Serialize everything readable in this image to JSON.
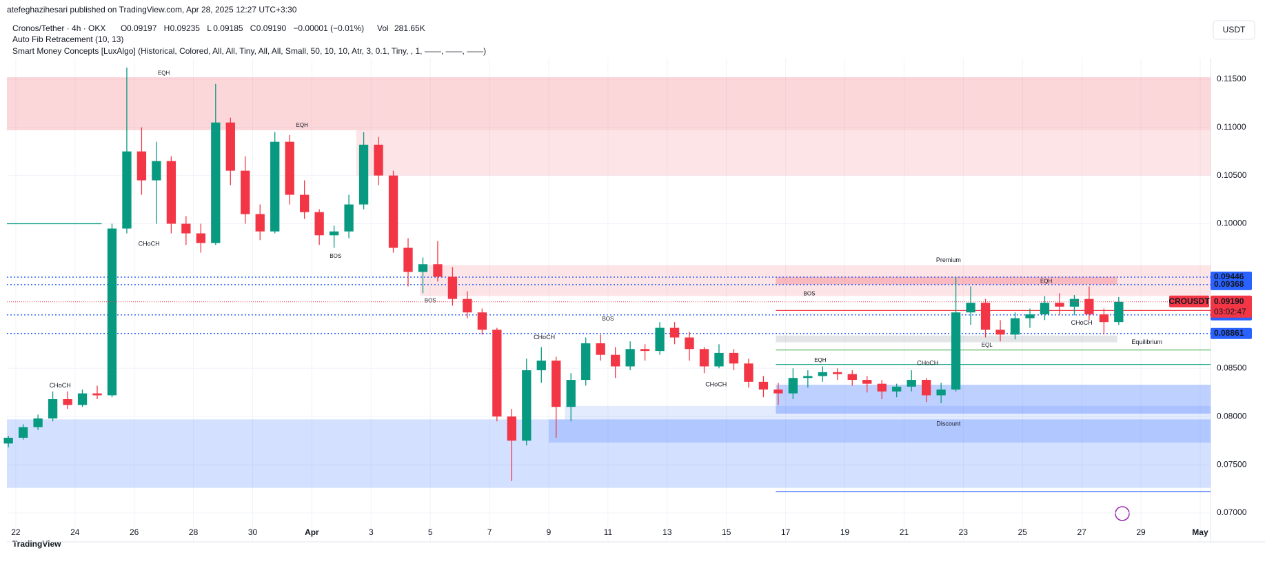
{
  "header": {
    "publisher": "atefeghazihesari published on TradingView.com, Apr 28, 2025 12:27 UTC+3:30"
  },
  "chart_data": {
    "type": "candlestick",
    "title": "Cronos/Tether · 4h · OKX",
    "legend": {
      "O": "0.09197",
      "H": "0.09235",
      "L": "0.09185",
      "C": "0.09190",
      "change": "−0.00001 (−0.01%)",
      "Vol": "281.65K"
    },
    "indicators": [
      "Auto Fib Retracement (10, 13)",
      "Smart Money Concepts [LuxAlgo] (Historical, Colored, All, All, Tiny, All, All, Small, 50, 10, 10, Atr, 3, 0.1, Tiny, , 1, ——, ——, ——)"
    ],
    "currency": "USDT",
    "up_color": "#089981",
    "down_color": "#f23645",
    "xlim": [
      21.7,
      62.35
    ],
    "ylim": [
      0.069,
      0.1162
    ],
    "xticks": [
      22,
      24,
      26,
      28,
      30,
      {
        "value": 32,
        "label": "Apr"
      },
      {
        "value": 34,
        "label": "3"
      },
      {
        "value": 36,
        "label": "5"
      },
      {
        "value": 38,
        "label": "7"
      },
      {
        "value": 40,
        "label": "9"
      },
      {
        "value": 42,
        "label": "11"
      },
      {
        "value": 44,
        "label": "13"
      },
      {
        "value": 46,
        "label": "15"
      },
      {
        "value": 48,
        "label": "17"
      },
      {
        "value": 50,
        "label": "19"
      },
      {
        "value": 52,
        "label": "21"
      },
      {
        "value": 54,
        "label": "23"
      },
      {
        "value": 56,
        "label": "25"
      },
      {
        "value": 58,
        "label": "27"
      },
      {
        "value": 60,
        "label": "29"
      },
      {
        "value": 62,
        "label": "May"
      }
    ],
    "yticks": [
      {
        "value": 0.115,
        "label": "0.11500"
      },
      {
        "value": 0.11,
        "label": "0.11000"
      },
      {
        "value": 0.105,
        "label": "0.10500"
      },
      {
        "value": 0.1,
        "label": "0.10000"
      },
      {
        "value": 0.085,
        "label": "0.08500"
      },
      {
        "value": 0.08,
        "label": "0.08000"
      },
      {
        "value": 0.075,
        "label": "0.07500"
      },
      {
        "value": 0.07,
        "label": "0.07000"
      }
    ],
    "grid": true,
    "x": [
      21.75,
      22.25,
      22.75,
      23.25,
      23.75,
      24.25,
      24.75,
      25.25,
      25.75,
      26.25,
      26.75,
      27.25,
      27.75,
      28.25,
      28.75,
      29.25,
      29.75,
      30.25,
      30.75,
      31.25,
      31.75,
      32.25,
      32.75,
      33.25,
      33.75,
      34.25,
      34.75,
      35.25,
      35.75,
      36.25,
      36.75,
      37.25,
      37.75,
      38.25,
      38.75,
      39.25,
      39.75,
      40.25,
      40.75,
      41.25,
      41.75,
      42.25,
      42.75,
      43.25,
      43.75,
      44.25,
      44.75,
      45.25,
      45.75,
      46.25,
      46.75,
      47.25,
      47.75,
      48.25,
      48.75,
      49.25,
      49.75,
      50.25,
      50.75,
      51.25,
      51.75,
      52.25,
      52.75,
      53.25,
      53.75,
      54.25,
      54.75,
      55.25,
      55.75,
      56.25,
      56.75,
      57.25,
      57.75,
      58.25,
      58.75,
      59.25
    ],
    "ohlc": [
      [
        0.0772,
        0.078,
        0.0768,
        0.0778
      ],
      [
        0.0778,
        0.0792,
        0.0776,
        0.0789
      ],
      [
        0.0789,
        0.0802,
        0.0786,
        0.0798
      ],
      [
        0.0798,
        0.0826,
        0.0795,
        0.0818
      ],
      [
        0.0818,
        0.0826,
        0.0808,
        0.0812
      ],
      [
        0.0812,
        0.0828,
        0.081,
        0.0824
      ],
      [
        0.0824,
        0.0832,
        0.0818,
        0.0822
      ],
      [
        0.0822,
        0.1,
        0.082,
        0.0995
      ],
      [
        0.0995,
        0.1162,
        0.099,
        0.1075
      ],
      [
        0.1075,
        0.11,
        0.103,
        0.1045
      ],
      [
        0.1045,
        0.1085,
        0.1,
        0.1065
      ],
      [
        0.1065,
        0.107,
        0.099,
        0.1
      ],
      [
        0.1,
        0.1008,
        0.0978,
        0.099
      ],
      [
        0.099,
        0.1,
        0.097,
        0.098
      ],
      [
        0.098,
        0.1145,
        0.0978,
        0.1105
      ],
      [
        0.1105,
        0.111,
        0.104,
        0.1055
      ],
      [
        0.1055,
        0.107,
        0.1,
        0.101
      ],
      [
        0.101,
        0.102,
        0.0983,
        0.0992
      ],
      [
        0.0992,
        0.1095,
        0.099,
        0.1085
      ],
      [
        0.1085,
        0.1092,
        0.102,
        0.103
      ],
      [
        0.103,
        0.1045,
        0.1005,
        0.1012
      ],
      [
        0.1012,
        0.1015,
        0.0978,
        0.0988
      ],
      [
        0.0988,
        0.0998,
        0.0975,
        0.0992
      ],
      [
        0.0992,
        0.103,
        0.0985,
        0.102
      ],
      [
        0.102,
        0.1095,
        0.1015,
        0.1082
      ],
      [
        0.1082,
        0.109,
        0.104,
        0.105
      ],
      [
        0.105,
        0.1055,
        0.097,
        0.0975
      ],
      [
        0.0975,
        0.0985,
        0.0935,
        0.095
      ],
      [
        0.095,
        0.0965,
        0.0928,
        0.0958
      ],
      [
        0.0958,
        0.0982,
        0.094,
        0.0945
      ],
      [
        0.0945,
        0.0955,
        0.0915,
        0.0922
      ],
      [
        0.0922,
        0.093,
        0.0902,
        0.0908
      ],
      [
        0.0908,
        0.0912,
        0.0885,
        0.089
      ],
      [
        0.089,
        0.0892,
        0.0795,
        0.08
      ],
      [
        0.08,
        0.0808,
        0.0733,
        0.0775
      ],
      [
        0.0775,
        0.086,
        0.077,
        0.0848
      ],
      [
        0.0848,
        0.0872,
        0.0835,
        0.0858
      ],
      [
        0.0858,
        0.0862,
        0.0778,
        0.081
      ],
      [
        0.081,
        0.0845,
        0.0795,
        0.0838
      ],
      [
        0.0838,
        0.0882,
        0.0832,
        0.0876
      ],
      [
        0.0876,
        0.0885,
        0.0858,
        0.0864
      ],
      [
        0.0864,
        0.0872,
        0.084,
        0.0852
      ],
      [
        0.0852,
        0.0878,
        0.0848,
        0.087
      ],
      [
        0.087,
        0.0875,
        0.0858,
        0.0868
      ],
      [
        0.0868,
        0.0898,
        0.0864,
        0.0892
      ],
      [
        0.0892,
        0.0898,
        0.0875,
        0.0882
      ],
      [
        0.0882,
        0.0888,
        0.0858,
        0.087
      ],
      [
        0.087,
        0.0872,
        0.0845,
        0.0852
      ],
      [
        0.0852,
        0.0875,
        0.085,
        0.0866
      ],
      [
        0.0866,
        0.087,
        0.0848,
        0.0855
      ],
      [
        0.0855,
        0.086,
        0.083,
        0.0836
      ],
      [
        0.0836,
        0.0842,
        0.082,
        0.0828
      ],
      [
        0.0828,
        0.0835,
        0.0812,
        0.0824
      ],
      [
        0.0824,
        0.085,
        0.0818,
        0.084
      ],
      [
        0.084,
        0.0848,
        0.083,
        0.0842
      ],
      [
        0.0842,
        0.0852,
        0.0836,
        0.0846
      ],
      [
        0.0846,
        0.085,
        0.0838,
        0.0844
      ],
      [
        0.0844,
        0.0848,
        0.0832,
        0.0838
      ],
      [
        0.0838,
        0.0842,
        0.0825,
        0.0834
      ],
      [
        0.0834,
        0.0838,
        0.0818,
        0.0826
      ],
      [
        0.0826,
        0.0834,
        0.082,
        0.0831
      ],
      [
        0.0831,
        0.0848,
        0.0826,
        0.0838
      ],
      [
        0.0838,
        0.084,
        0.0815,
        0.0822
      ],
      [
        0.0822,
        0.0835,
        0.0814,
        0.0828
      ],
      [
        0.0828,
        0.0945,
        0.0826,
        0.0908
      ],
      [
        0.0908,
        0.0935,
        0.0895,
        0.0918
      ],
      [
        0.0918,
        0.0922,
        0.0882,
        0.089
      ],
      [
        0.089,
        0.09,
        0.0878,
        0.0885
      ],
      [
        0.0885,
        0.0908,
        0.088,
        0.0902
      ],
      [
        0.0902,
        0.0912,
        0.0892,
        0.0906
      ],
      [
        0.0906,
        0.0925,
        0.09,
        0.0918
      ],
      [
        0.0918,
        0.0928,
        0.0905,
        0.0914
      ],
      [
        0.0914,
        0.0926,
        0.0905,
        0.0922
      ],
      [
        0.0922,
        0.0935,
        0.09,
        0.0906
      ],
      [
        0.0906,
        0.0912,
        0.0885,
        0.0898
      ],
      [
        0.0898,
        0.0924,
        0.0895,
        0.0919
      ]
    ],
    "zones": [
      {
        "x": [
          21.7,
          62.35
        ],
        "y": [
          0.1097,
          0.1152
        ],
        "color": "rgba(242,54,69,0.2)"
      },
      {
        "x": [
          33.5,
          62.35
        ],
        "y": [
          0.105,
          0.1097
        ],
        "color": "rgba(242,54,69,0.13)"
      },
      {
        "x": [
          35.65,
          62.35
        ],
        "y": [
          0.0925,
          0.0957
        ],
        "color": "rgba(242,54,69,0.13)"
      },
      {
        "x": [
          47.67,
          59.2
        ],
        "y": [
          0.0937,
          0.0945
        ],
        "color": "rgba(242,54,69,0.25)"
      },
      {
        "x": [
          21.7,
          62.35
        ],
        "y": [
          0.0726,
          0.0797
        ],
        "color": "rgba(41,98,255,0.2)"
      },
      {
        "x": [
          40,
          62.35
        ],
        "y": [
          0.0773,
          0.0797
        ],
        "color": "rgba(41,98,255,0.2)"
      },
      {
        "x": [
          40.55,
          62.35
        ],
        "y": [
          0.0797,
          0.0811
        ],
        "color": "rgba(41,98,255,0.13)"
      },
      {
        "x": [
          47.67,
          62.35
        ],
        "y": [
          0.0803,
          0.0833
        ],
        "color": "rgba(41,98,255,0.3)"
      },
      {
        "x": [
          47.67,
          59.2
        ],
        "y": [
          0.0877,
          0.0884
        ],
        "color": "rgba(120,123,134,0.2)"
      }
    ],
    "lines": [
      {
        "x": [
          21.7,
          24.9
        ],
        "y": 0.1,
        "color": "#089981"
      },
      {
        "x": [
          47.67,
          62.35
        ],
        "y": 0.0869,
        "color": "#4caf50"
      },
      {
        "x": [
          47.67,
          62.35
        ],
        "y": 0.0854,
        "color": "#089981"
      },
      {
        "x": [
          47.67,
          62.35
        ],
        "y": 0.0722,
        "color": "#2962ff"
      },
      {
        "x": [
          47.67,
          62.35
        ],
        "y": 0.091,
        "color": "#f23645"
      }
    ],
    "levels": [
      {
        "value": 0.09446,
        "color": "#2962ff"
      },
      {
        "value": 0.09368,
        "color": "#2962ff"
      },
      {
        "value": 0.09054,
        "color": "#2962ff"
      },
      {
        "value": 0.08861,
        "color": "#2962ff"
      }
    ],
    "last": {
      "symbol": "CROUSDT",
      "price": {
        "value": 0.0919,
        "label": "0.09190"
      },
      "countdown": "03:02:47",
      "color": "#f23645"
    },
    "annotations": [
      {
        "text": "EQH",
        "x": 27.0,
        "y": 0.1156,
        "color": "#f23645"
      },
      {
        "text": "EQH",
        "x": 31.67,
        "y": 0.1102,
        "color": "#f23645"
      },
      {
        "text": "CHoCH",
        "x": 26.5,
        "y": 0.0979,
        "color": "#f23645"
      },
      {
        "text": "BOS",
        "x": 32.8,
        "y": 0.0966,
        "color": "#f23645"
      },
      {
        "text": "BOS",
        "x": 36.0,
        "y": 0.092,
        "color": "#f23645"
      },
      {
        "text": "CHoCH",
        "x": 23.5,
        "y": 0.0832,
        "color": "#089981"
      },
      {
        "text": "CHoCH",
        "x": 39.85,
        "y": 0.0882,
        "color": "#089981"
      },
      {
        "text": "BOS",
        "x": 42.0,
        "y": 0.0901,
        "color": "#089981"
      },
      {
        "text": "CHoCH",
        "x": 45.65,
        "y": 0.0833,
        "color": "#f23645"
      },
      {
        "text": "EQH",
        "x": 49.17,
        "y": 0.0858,
        "color": "#f23645"
      },
      {
        "text": "CHoCH",
        "x": 52.8,
        "y": 0.0855,
        "color": "#089981"
      },
      {
        "text": "BOS",
        "x": 48.8,
        "y": 0.0927,
        "color": "#089981"
      },
      {
        "text": "Premium",
        "x": 53.5,
        "y": 0.0962,
        "color": "#f23645"
      },
      {
        "text": "Discount",
        "x": 53.5,
        "y": 0.0792,
        "color": "#089981"
      },
      {
        "text": "Equilibrium",
        "x": 60.2,
        "y": 0.0877,
        "color": "#9598a1"
      },
      {
        "text": "EQH",
        "x": 56.8,
        "y": 0.094,
        "color": "#f23645"
      },
      {
        "text": "CHoCH",
        "x": 58.0,
        "y": 0.0897,
        "color": "#f23645"
      },
      {
        "text": "EQL",
        "x": 54.8,
        "y": 0.0874,
        "color": "#089981"
      }
    ]
  },
  "footer": {
    "brand": "TradingView"
  }
}
